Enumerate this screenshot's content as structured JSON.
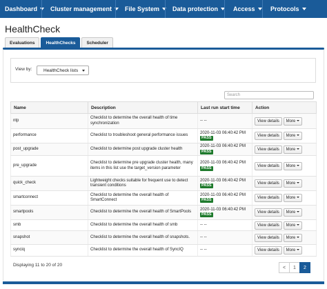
{
  "nav": {
    "items": [
      {
        "label": "Dashboard"
      },
      {
        "label": "Cluster management"
      },
      {
        "label": "File System"
      },
      {
        "label": "Data protection"
      },
      {
        "label": "Access"
      },
      {
        "label": "Protocols"
      }
    ]
  },
  "page": {
    "title": "HealthCheck"
  },
  "tabs": [
    {
      "label": "Evaluations"
    },
    {
      "label": "HealthChecks",
      "active": true
    },
    {
      "label": "Scheduler"
    }
  ],
  "filter": {
    "label": "View by:",
    "selected": "HealthCheck lists"
  },
  "search": {
    "placeholder": "Search"
  },
  "table": {
    "headers": [
      "Name",
      "Description",
      "Last run start time",
      "Action"
    ],
    "rows": [
      {
        "name": "ntp",
        "description": "Checklist to determine the overall health of time synchronization",
        "last_run": "-- --",
        "status": ""
      },
      {
        "name": "performance",
        "description": "Checklist to troubleshoot general performance issues",
        "last_run": "2020-11-03 06:40:42 PM",
        "status": "PASS"
      },
      {
        "name": "post_upgrade",
        "description": "Checklist to determine post upgrade cluster health",
        "last_run": "2020-11-03 06:40:42 PM",
        "status": "PASS"
      },
      {
        "name": "pre_upgrade",
        "description": "Checklist to determine pre upgrade cluster health, many items in this list use the target_version parameter",
        "last_run": "2020-11-03 06:40:42 PM",
        "status": "PASS"
      },
      {
        "name": "quick_check",
        "description": "Lightweight checks suitable for frequent use to detect transient conditions",
        "last_run": "2020-11-03 06:40:42 PM",
        "status": "PASS"
      },
      {
        "name": "smartconnect",
        "description": "Checklist to determine the overall health of SmartConnect",
        "last_run": "2020-11-03 06:40:42 PM",
        "status": "PASS"
      },
      {
        "name": "smartpools",
        "description": "Checklist to determine the overall health of SmartPools",
        "last_run": "2020-11-03 06:40:42 PM",
        "status": "PASS"
      },
      {
        "name": "smb",
        "description": "Checklist to determine the overall health of smb",
        "last_run": "-- --",
        "status": ""
      },
      {
        "name": "snapshot",
        "description": "Checklist to determine the overall health of snapshots.",
        "last_run": "-- --",
        "status": ""
      },
      {
        "name": "synciq",
        "description": "Checklist to determine the overall health of SyncIQ",
        "last_run": "-- --",
        "status": ""
      }
    ],
    "view_details_label": "View details",
    "more_label": "More"
  },
  "footer": {
    "summary": "Displaying 11 to 20 of 20"
  },
  "pagination": {
    "prev": "<",
    "pages": [
      "1",
      "2"
    ],
    "current": "2"
  },
  "colors": {
    "primary": "#1a5b99",
    "pass": "#1e7a2c"
  }
}
